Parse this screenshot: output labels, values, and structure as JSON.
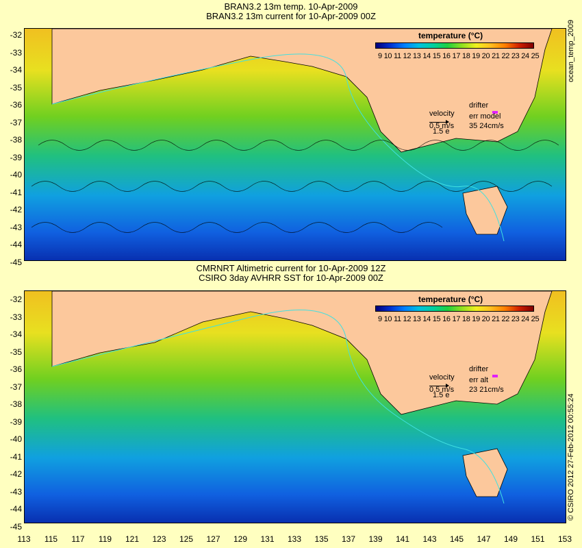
{
  "top_panel": {
    "title_line1": "BRAN3.2 13m temp. 10-Apr-2009",
    "title_line2": "BRAN3.2 13m current for 10-Apr-2009 00Z",
    "legend": {
      "title": "temperature (°C)",
      "labels": "9 10 11 12 13 14 15 16 17 18 19 20 21 22 23 24 25"
    },
    "velocity_label": "velocity",
    "velocity_value": "0.5 m/s",
    "velocity_sub": "1.5 e",
    "drifter_label": "drifter",
    "err_label": "err model",
    "err_value": "35 24cm/s",
    "side_label": "ocean_temp_2009"
  },
  "bottom_panel": {
    "title_line1": "CMRNRT Altimetric current for 10-Apr-2009 12Z",
    "title_line2": "CSIRO 3day AVHRR SST for 10-Apr-2009 00Z",
    "legend": {
      "title": "temperature (°C)",
      "labels": "9 10 11 12 13 14 15 16 17 18 19 20 21 22 23 24 25"
    },
    "velocity_label": "velocity",
    "velocity_value": "0.5 m/s",
    "velocity_sub": "1.5 e",
    "drifter_label": "drifter",
    "err_label": "err alt",
    "err_value": "23 21cm/s",
    "side_label": "© CSIRO 2012  27-Feb-2012 00:55:24"
  },
  "y_ticks": [
    "-32",
    "-33",
    "-34",
    "-35",
    "-36",
    "-37",
    "-38",
    "-39",
    "-40",
    "-41",
    "-42",
    "-43",
    "-44",
    "-45"
  ],
  "x_ticks": [
    "113",
    "115",
    "117",
    "119",
    "121",
    "123",
    "125",
    "127",
    "129",
    "131",
    "133",
    "135",
    "137",
    "139",
    "141",
    "143",
    "145",
    "147",
    "149",
    "151",
    "153"
  ],
  "colors": {
    "land": "#fcc89c",
    "background": "#ffffc0",
    "drifter": "#e020ff",
    "contour": "#40e0e0"
  }
}
